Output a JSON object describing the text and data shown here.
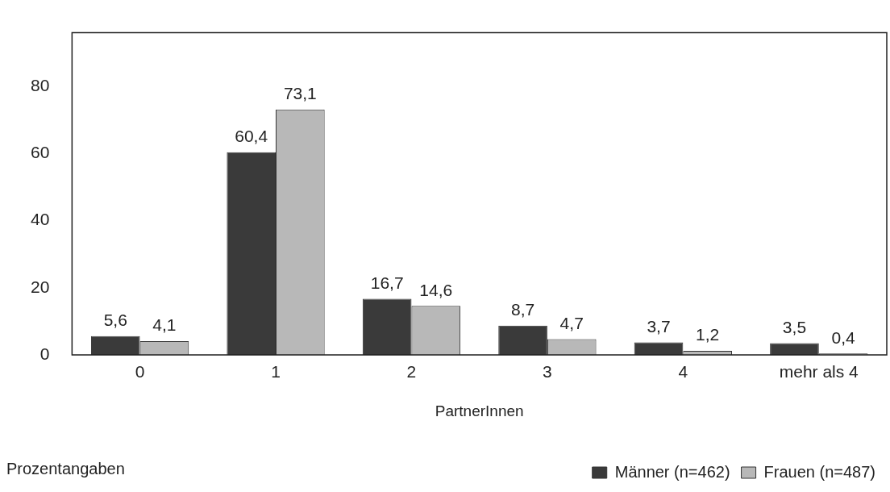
{
  "chart_data": {
    "type": "bar",
    "xlabel": "PartnerInnen",
    "categories": [
      "0",
      "1",
      "2",
      "3",
      "4",
      "mehr als 4"
    ],
    "series": [
      {
        "name": "Männer (n=462)",
        "color": "#3a3a3a",
        "values": [
          5.6,
          60.4,
          16.7,
          8.7,
          3.7,
          3.5
        ],
        "value_labels": [
          "5,6",
          "60,4",
          "16,7",
          "8,7",
          "3,7",
          "3,5"
        ]
      },
      {
        "name": "Frauen (n=487)",
        "color": "#b8b8b8",
        "values": [
          4.1,
          73.1,
          14.6,
          4.7,
          1.2,
          0.4
        ],
        "value_labels": [
          "4,1",
          "73,1",
          "14,6",
          "4,7",
          "1,2",
          "0,4"
        ]
      }
    ],
    "ylim": [
      0,
      96
    ],
    "yticks": [
      0,
      20,
      40,
      60,
      80
    ],
    "grid": false,
    "legend": "bottom right",
    "annotations": [
      "Prozentangaben"
    ]
  }
}
